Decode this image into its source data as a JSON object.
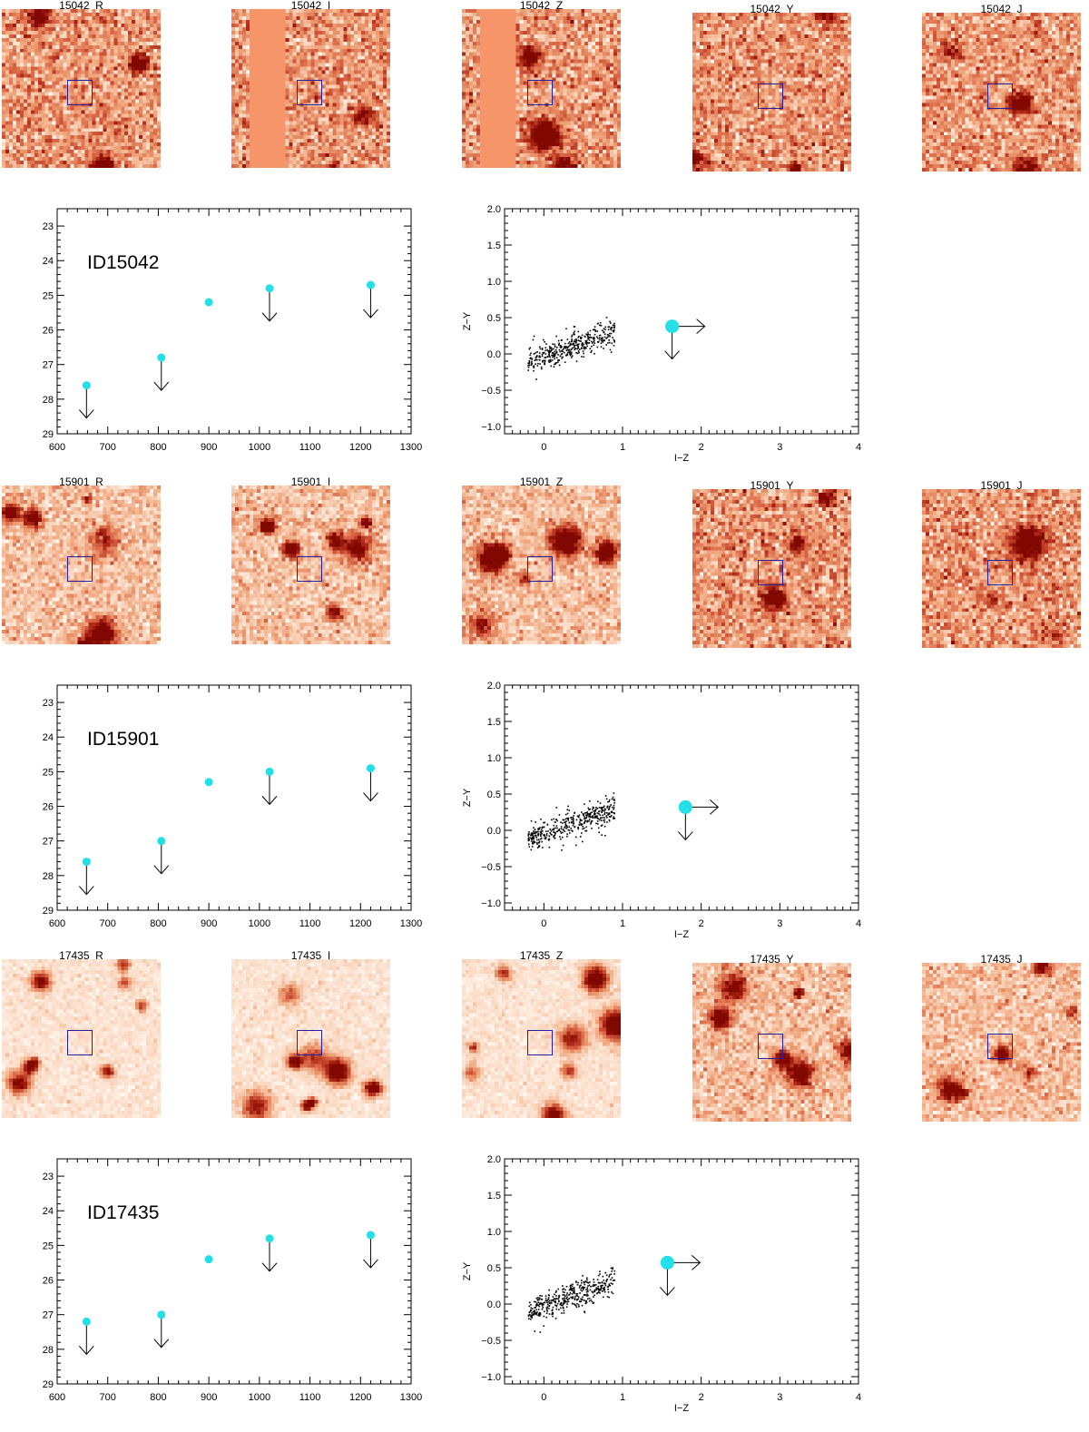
{
  "colors": {
    "point": "#22dfe8",
    "box": "#2020a0",
    "axis": "#000000",
    "stripe": "#f7956a"
  },
  "figure_rows": [
    {
      "id_label": "ID15042",
      "stamps": [
        {
          "label": "15042_R",
          "stripe": false,
          "style": "noisy"
        },
        {
          "label": "15042_I",
          "stripe": true,
          "style": "noisy"
        },
        {
          "label": "15042_Z",
          "stripe": true,
          "style": "noisy"
        },
        {
          "label": "15042_Y",
          "stripe": false,
          "style": "noisy"
        },
        {
          "label": "15042_J",
          "stripe": false,
          "style": "noisy"
        }
      ]
    },
    {
      "id_label": "ID15901",
      "stamps": [
        {
          "label": "15901_R",
          "stripe": false,
          "style": "field"
        },
        {
          "label": "15901_I",
          "stripe": false,
          "style": "field"
        },
        {
          "label": "15901_Z",
          "stripe": false,
          "style": "field"
        },
        {
          "label": "15901_Y",
          "stripe": false,
          "style": "noisy"
        },
        {
          "label": "15901_J",
          "stripe": false,
          "style": "noisy"
        }
      ]
    },
    {
      "id_label": "ID17435",
      "stamps": [
        {
          "label": "17435_R",
          "stripe": false,
          "style": "bright"
        },
        {
          "label": "17435_I",
          "stripe": false,
          "style": "bright"
        },
        {
          "label": "17435_Z",
          "stripe": false,
          "style": "bright"
        },
        {
          "label": "17435_Y",
          "stripe": false,
          "style": "field"
        },
        {
          "label": "17435_J",
          "stripe": false,
          "style": "field"
        }
      ]
    }
  ],
  "chart_data": [
    {
      "type": "scatter",
      "title": "ID15042",
      "xlabel": "",
      "ylabel": "",
      "xlim": [
        600,
        1300
      ],
      "ylim": [
        29,
        22.5
      ],
      "xticks": [
        600,
        700,
        800,
        900,
        1000,
        1100,
        1200,
        1300
      ],
      "yticks": [
        23,
        24,
        25,
        26,
        27,
        28,
        29
      ],
      "points": [
        {
          "x": 658,
          "y": 27.6,
          "upper_limit": true
        },
        {
          "x": 806,
          "y": 26.8,
          "upper_limit": true
        },
        {
          "x": 900,
          "y": 25.2,
          "upper_limit": false
        },
        {
          "x": 1020,
          "y": 24.8,
          "upper_limit": true
        },
        {
          "x": 1220,
          "y": 24.7,
          "upper_limit": true
        }
      ]
    },
    {
      "type": "scatter",
      "xlabel": "I−Z",
      "ylabel": "Z−Y",
      "xlim": [
        -0.5,
        4
      ],
      "ylim": [
        -1.1,
        2.0
      ],
      "xticks": [
        0,
        1,
        2,
        3,
        4
      ],
      "yticks": [
        -1.0,
        -0.5,
        0.0,
        0.5,
        1.0,
        1.5,
        2.0
      ],
      "ytick_labels": [
        "−1.0",
        "−0.5",
        "0.0",
        "0.5",
        "1.0",
        "1.5",
        "2.0"
      ],
      "locus": {
        "x_range": [
          -0.2,
          0.9
        ],
        "slope": 0.37,
        "intercept": -0.03,
        "scatter": 0.09,
        "n": 420,
        "seed": 11
      },
      "source": {
        "x": 1.63,
        "y": 0.38,
        "x_lower_limit": true,
        "y_upper_limit": true
      }
    },
    {
      "type": "scatter",
      "title": "ID15901",
      "xlabel": "",
      "ylabel": "",
      "xlim": [
        600,
        1300
      ],
      "ylim": [
        29,
        22.5
      ],
      "xticks": [
        600,
        700,
        800,
        900,
        1000,
        1100,
        1200,
        1300
      ],
      "yticks": [
        23,
        24,
        25,
        26,
        27,
        28,
        29
      ],
      "points": [
        {
          "x": 658,
          "y": 27.6,
          "upper_limit": true
        },
        {
          "x": 806,
          "y": 27.0,
          "upper_limit": true
        },
        {
          "x": 900,
          "y": 25.3,
          "upper_limit": false
        },
        {
          "x": 1020,
          "y": 25.0,
          "upper_limit": true
        },
        {
          "x": 1220,
          "y": 24.9,
          "upper_limit": true
        }
      ]
    },
    {
      "type": "scatter",
      "xlabel": "I−Z",
      "ylabel": "Z−Y",
      "xlim": [
        -0.5,
        4
      ],
      "ylim": [
        -1.1,
        2.0
      ],
      "xticks": [
        0,
        1,
        2,
        3,
        4
      ],
      "yticks": [
        -1.0,
        -0.5,
        0.0,
        0.5,
        1.0,
        1.5,
        2.0
      ],
      "ytick_labels": [
        "−1.0",
        "−0.5",
        "0.0",
        "0.5",
        "1.0",
        "1.5",
        "2.0"
      ],
      "locus": {
        "x_range": [
          -0.2,
          0.9
        ],
        "slope": 0.37,
        "intercept": -0.03,
        "scatter": 0.09,
        "n": 420,
        "seed": 23
      },
      "source": {
        "x": 1.8,
        "y": 0.32,
        "x_lower_limit": true,
        "y_upper_limit": true
      }
    },
    {
      "type": "scatter",
      "title": "ID17435",
      "xlabel": "",
      "ylabel": "",
      "xlim": [
        600,
        1300
      ],
      "ylim": [
        29,
        22.5
      ],
      "xticks": [
        600,
        700,
        800,
        900,
        1000,
        1100,
        1200,
        1300
      ],
      "yticks": [
        23,
        24,
        25,
        26,
        27,
        28,
        29
      ],
      "points": [
        {
          "x": 658,
          "y": 27.2,
          "upper_limit": true
        },
        {
          "x": 806,
          "y": 27.0,
          "upper_limit": true
        },
        {
          "x": 900,
          "y": 25.4,
          "upper_limit": false
        },
        {
          "x": 1020,
          "y": 24.8,
          "upper_limit": true
        },
        {
          "x": 1220,
          "y": 24.7,
          "upper_limit": true
        }
      ]
    },
    {
      "type": "scatter",
      "xlabel": "I−Z",
      "ylabel": "Z−Y",
      "xlim": [
        -0.5,
        4
      ],
      "ylim": [
        -1.1,
        2.0
      ],
      "xticks": [
        0,
        1,
        2,
        3,
        4
      ],
      "yticks": [
        -1.0,
        -0.5,
        0.0,
        0.5,
        1.0,
        1.5,
        2.0
      ],
      "ytick_labels": [
        "−1.0",
        "−0.5",
        "0.0",
        "0.5",
        "1.0",
        "1.5",
        "2.0"
      ],
      "locus": {
        "x_range": [
          -0.2,
          0.9
        ],
        "slope": 0.37,
        "intercept": -0.03,
        "scatter": 0.09,
        "n": 420,
        "seed": 37
      },
      "source": {
        "x": 1.57,
        "y": 0.57,
        "x_lower_limit": true,
        "y_upper_limit": true
      }
    }
  ]
}
